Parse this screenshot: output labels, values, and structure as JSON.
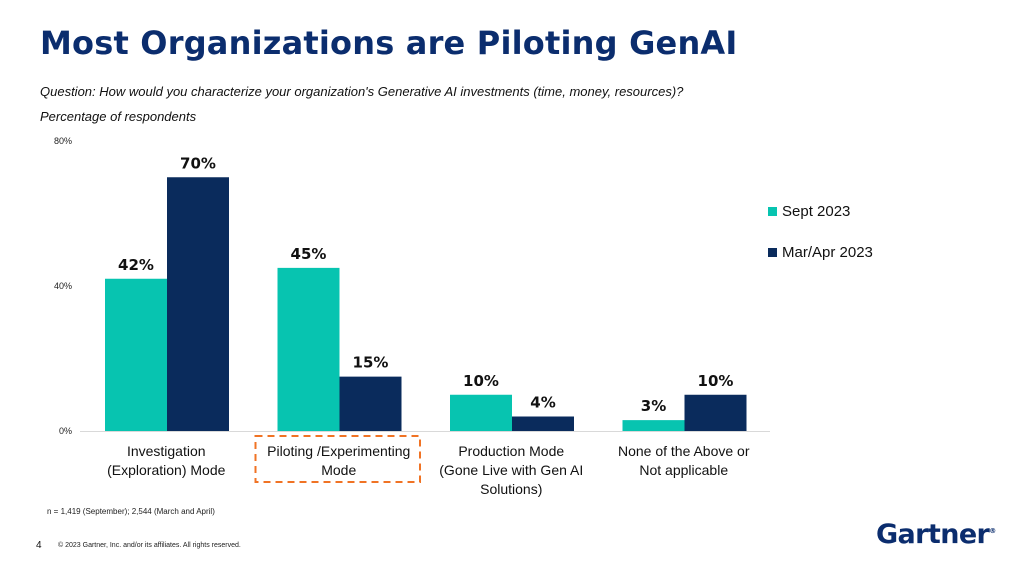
{
  "title": "Most Organizations are Piloting GenAI",
  "question": "Question: How would you characterize your organization's Generative AI investments (time, money, resources)?",
  "metric": "Percentage of respondents",
  "colors": {
    "sept": "#07c4b0",
    "mar": "#0a2b5c",
    "title": "#0b2d6e",
    "highlight": "#f07324"
  },
  "chart_data": {
    "type": "bar",
    "categories": [
      [
        "Investigation",
        "(Exploration) Mode"
      ],
      [
        "Piloting /Experimenting",
        "Mode"
      ],
      [
        "Production Mode",
        "(Gone Live with Gen AI",
        "Solutions)"
      ],
      [
        "None of the Above or",
        "Not applicable"
      ]
    ],
    "series": [
      {
        "name": "Sept 2023",
        "values": [
          42,
          45,
          10,
          3
        ],
        "labels": [
          "42%",
          "45%",
          "10%",
          "3%"
        ]
      },
      {
        "name": "Mar/Apr 2023",
        "values": [
          70,
          15,
          4,
          10
        ],
        "labels": [
          "70%",
          "15%",
          "4%",
          "10%"
        ]
      }
    ],
    "ylim": [
      0,
      80
    ],
    "yticks": [
      0,
      40,
      80
    ],
    "ytick_labels": [
      "0%",
      "40%",
      "80%"
    ],
    "legend_position": "right",
    "highlighted_category": 1
  },
  "footer": {
    "sample_note": "n = 1,419 (September); 2,544 (March and April)",
    "page_number": "4",
    "copyright": "© 2023 Gartner, Inc. and/or its affiliates. All rights reserved.",
    "logo": "Gartner",
    "logo_mark": "®"
  }
}
